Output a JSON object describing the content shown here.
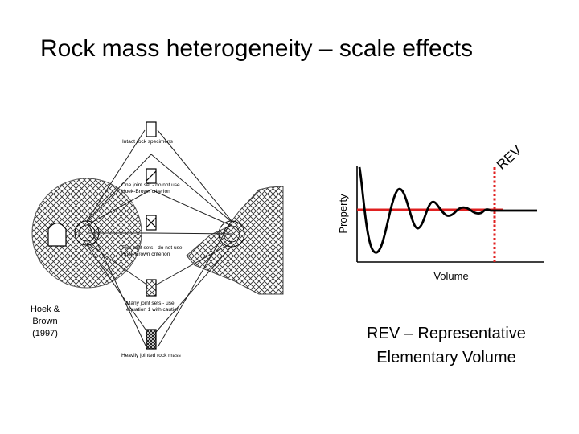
{
  "slide": {
    "title": "Rock mass heterogeneity – scale effects"
  },
  "hoek_brown_figure": {
    "labels": {
      "intact": "Intact rock specimens",
      "one_joint_a": "One joint set - do not use",
      "one_joint_b": "Hoek-Brown criterion",
      "two_joint_a": "Two joint sets - do not use",
      "two_joint_b": "Hoek Brown criterion",
      "many_joint_a": "Many joint sets - use",
      "many_joint_b": "equation 1 with caution",
      "heavily": "Heavily jointed rock mass"
    },
    "citation": {
      "line1": "Hoek &",
      "line2": "Brown",
      "line3": "(1997)"
    }
  },
  "rev_chart": {
    "rev_label": "REV",
    "ylabel": "Property",
    "xlabel": "Volume",
    "colors": {
      "curve": "#000000",
      "property_level": "#e02020",
      "rev_marker": "#e02020"
    }
  },
  "rev_definition": {
    "line1": "REV – Representative",
    "line2": "Elementary Volume"
  }
}
